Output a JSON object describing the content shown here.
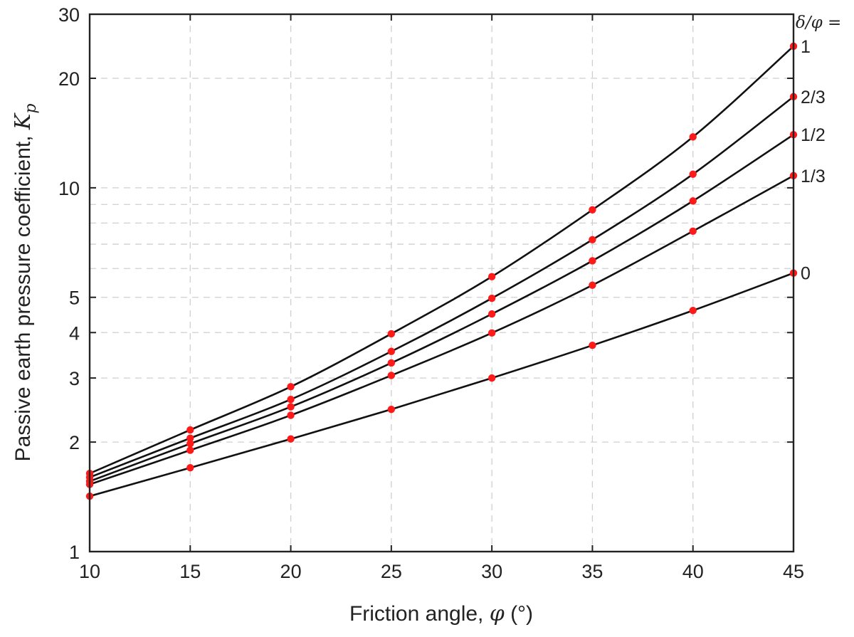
{
  "chart_data": {
    "type": "line",
    "xlabel_text": "Friction angle, ",
    "xlabel_symbol": "φ",
    "xlabel_unit": " (°)",
    "ylabel_text": "Passive earth pressure coefficient, ",
    "ylabel_symbol": "K",
    "ylabel_sub": "p",
    "legend_title": "δ/φ =",
    "xlim": [
      10,
      45
    ],
    "ylim": [
      1,
      30
    ],
    "yscale": "log",
    "grid": true,
    "x_ticks": [
      10,
      15,
      20,
      25,
      30,
      35,
      40,
      45
    ],
    "x_tick_labels": [
      "10",
      "15",
      "20",
      "25",
      "30",
      "35",
      "40",
      "45"
    ],
    "y_ticks": [
      1,
      2,
      3,
      4,
      5,
      10,
      20,
      30
    ],
    "y_tick_labels": [
      "1",
      "2",
      "3",
      "4",
      "5",
      "10",
      "20",
      "30"
    ],
    "y_grid_values": [
      2,
      3,
      4,
      5,
      6,
      7,
      8,
      9,
      10,
      20
    ],
    "x": [
      10,
      15,
      20,
      25,
      30,
      35,
      40,
      45
    ],
    "series": [
      {
        "label": "1",
        "values": [
          1.64,
          2.16,
          2.84,
          3.97,
          5.7,
          8.7,
          13.8,
          24.5
        ]
      },
      {
        "label": "2/3",
        "values": [
          1.6,
          2.05,
          2.62,
          3.55,
          4.97,
          7.2,
          10.9,
          17.8
        ]
      },
      {
        "label": "1/2",
        "values": [
          1.56,
          1.98,
          2.5,
          3.3,
          4.5,
          6.3,
          9.2,
          14.0
        ]
      },
      {
        "label": "1/3",
        "values": [
          1.53,
          1.9,
          2.37,
          3.05,
          3.99,
          5.4,
          7.6,
          10.8
        ]
      },
      {
        "label": "0",
        "values": [
          1.42,
          1.7,
          2.04,
          2.46,
          3.0,
          3.69,
          4.6,
          5.83
        ]
      }
    ]
  }
}
